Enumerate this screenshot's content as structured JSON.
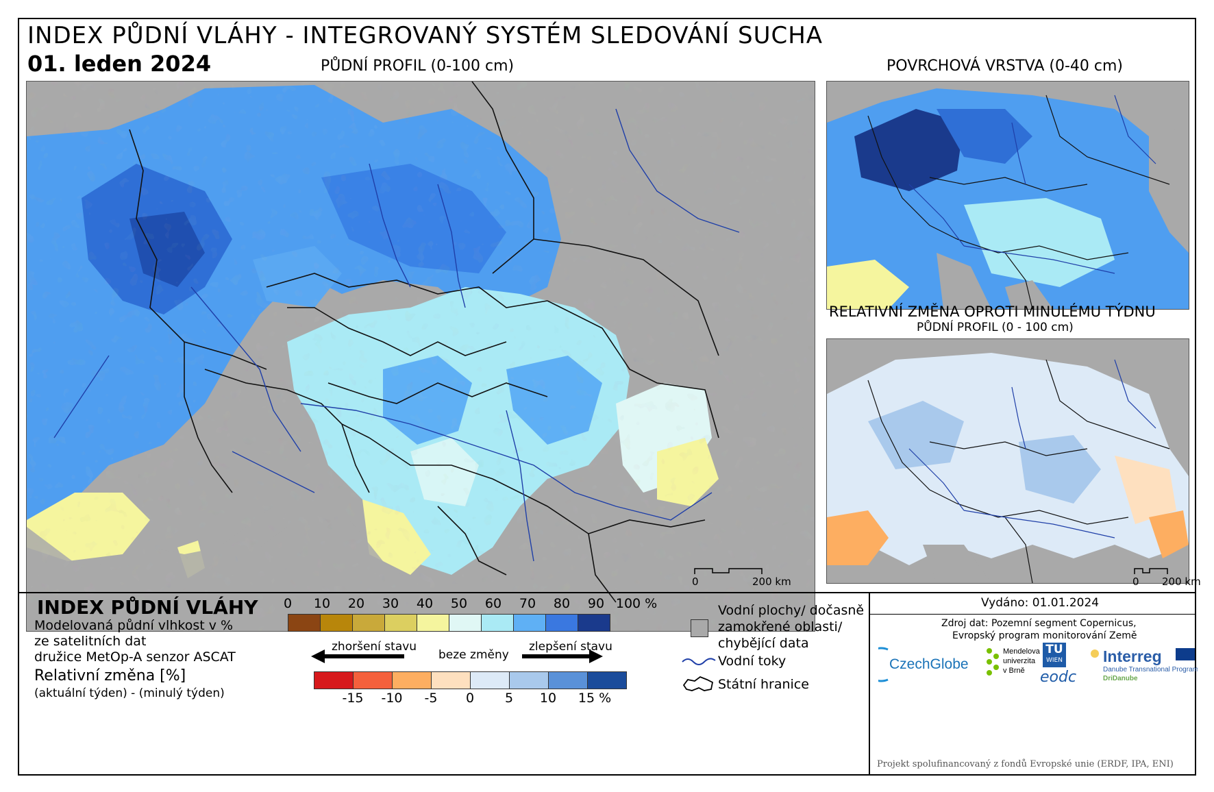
{
  "header": {
    "title": "INDEX PŮDNÍ VLÁHY - INTEGROVANÝ SYSTÉM SLEDOVÁNÍ SUCHA",
    "date": "01. leden 2024",
    "main_map_title": "PŮDNÍ PROFIL (0-100 cm)",
    "top_right_map_title": "POVRCHOVÁ VRSTVA (0-40 cm)",
    "bottom_right_map_title": "RELATIVNÍ ZMĚNA OPROTI MINULÉMU TÝDNU",
    "bottom_right_map_subtitle": "PŮDNÍ PROFIL (0 - 100 cm)"
  },
  "scale": {
    "zero": "0",
    "main_km": "200 km",
    "small_km": "200 km"
  },
  "legend": {
    "title": "INDEX PŮDNÍ VLÁHY",
    "desc_line1": "Modelovaná půdní vlhkost v %",
    "desc_line2": "ze satelitních dat",
    "desc_line3": "družice MetOp-A senzor ASCAT",
    "rel_title": "Relativní změna [%]",
    "rel_desc": "(aktuální týden) - (minulý týden)",
    "index_ticks": [
      "0",
      "10",
      "20",
      "30",
      "40",
      "50",
      "60",
      "70",
      "80",
      "90",
      "100 %"
    ],
    "index_colors": [
      "#8b4513",
      "#b8860b",
      "#c9a93a",
      "#dccf60",
      "#f5f59e",
      "#e0f7f5",
      "#aaeaf5",
      "#5fb0f5",
      "#3a78e0",
      "#1a3a8c"
    ],
    "change_colors": [
      "#d7191c",
      "#f4603c",
      "#fdae61",
      "#fee0bf",
      "#ddeaf7",
      "#a9c9ec",
      "#5a91d8",
      "#1b4c9b"
    ],
    "change_ticks": [
      "-15",
      "-10",
      "-5",
      "0",
      "5",
      "10",
      "15 %"
    ],
    "arrow_left": "zhoršení stavu",
    "arrow_mid": "beze změny",
    "arrow_right": "zlepšení stavu",
    "water_label_1": "Vodní plochy/ dočasně",
    "water_label_2": "zamokřené oblasti/",
    "water_label_3": "chybějící data",
    "rivers_label": "Vodní toky",
    "borders_label": "Státní hranice",
    "colors": {
      "no_data": "#a9a9a9",
      "river": "#1f3fa8"
    }
  },
  "footer": {
    "issued": "Vydáno: 01.01.2024",
    "source_line1": "Zdroj dat: Pozemní segment Copernicus,",
    "source_line2": "Evropský program monitorování Země",
    "logos": {
      "czechglobe": "CzechGlobe",
      "mendelu_1": "Mendelova",
      "mendelu_2": "univerzita",
      "mendelu_3": "v Brně",
      "tu": "TU",
      "wien": "WIEN",
      "eodc": "eodc",
      "interreg": "Interreg",
      "interreg_sub": "Danube Transnational Programme",
      "dridanube": "DriDanube"
    },
    "funding": "Projekt spolufinancovaný z fondů Evropské unie (ERDF, IPA, ENI)"
  }
}
